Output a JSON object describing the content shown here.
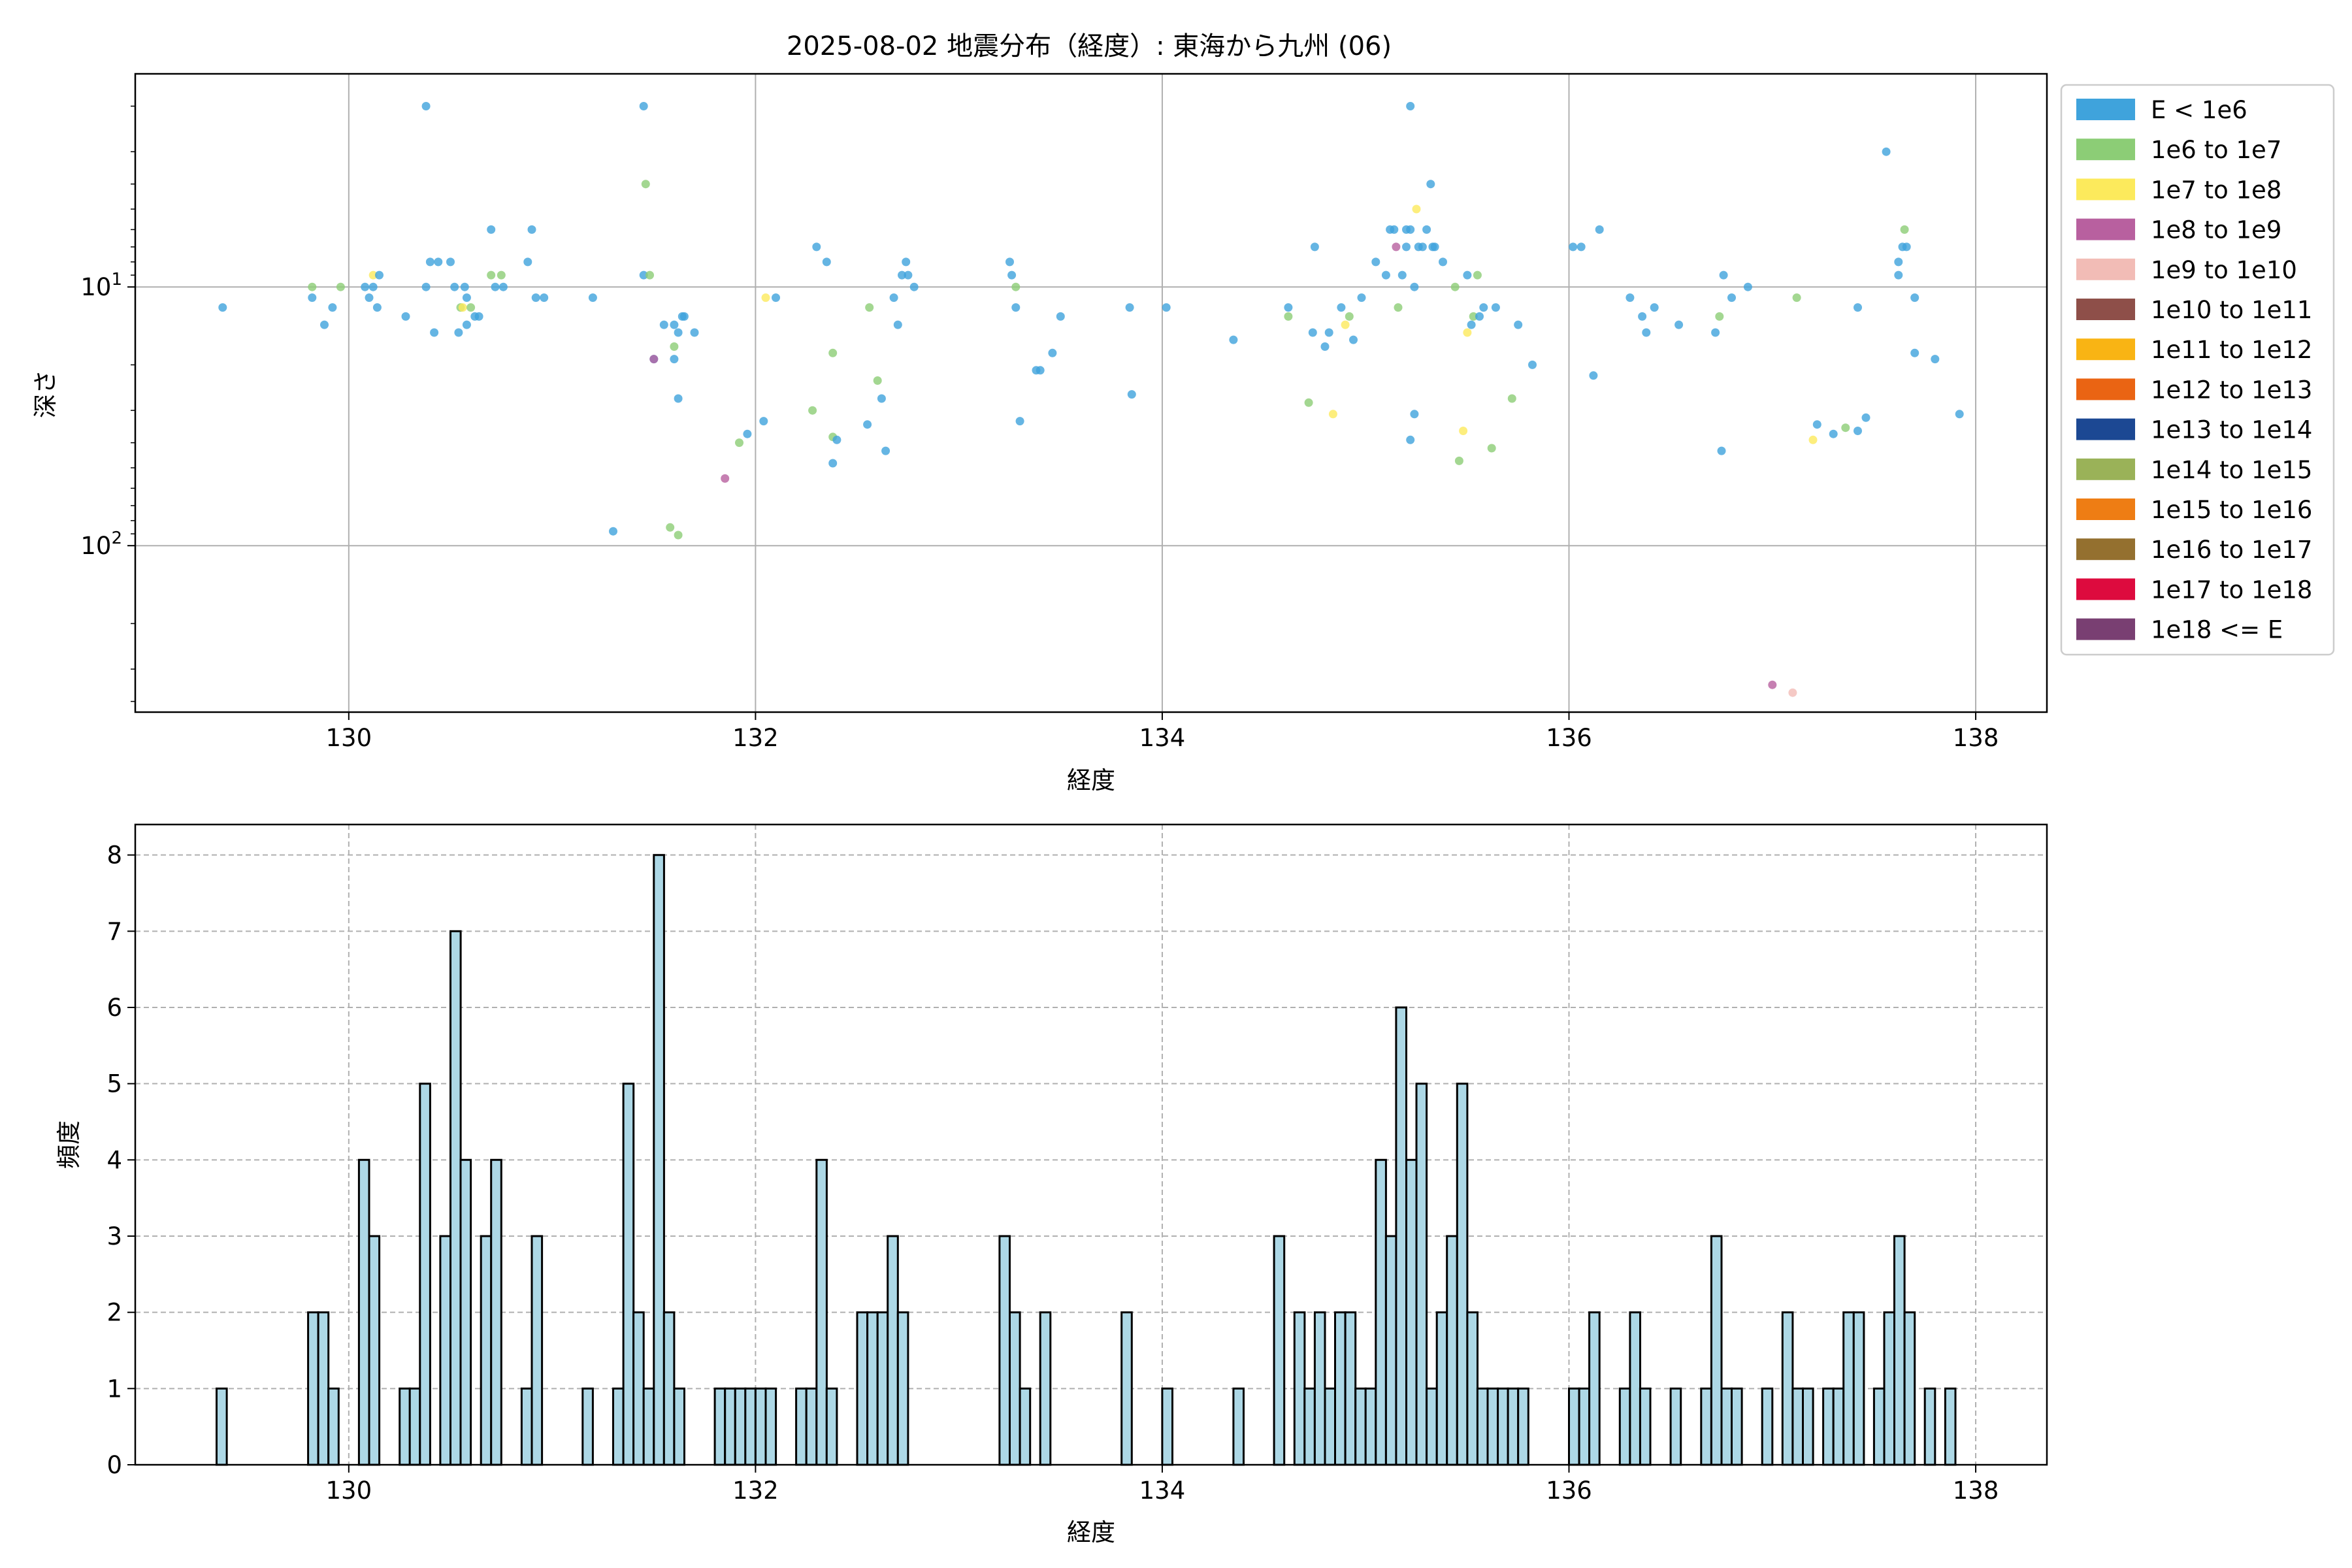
{
  "title": "2025-08-02 地震分布（経度）: 東海から九州 (06)",
  "chart_data": [
    {
      "type": "scatter",
      "xlabel": "経度",
      "ylabel": "深さ",
      "xlim": [
        128.95,
        138.35
      ],
      "ylim": [
        440,
        1.5
      ],
      "yscale": "log",
      "y_inverted": true,
      "xticks": [
        130,
        132,
        134,
        136,
        138
      ],
      "xtick_labels": [
        "130",
        "132",
        "134",
        "136",
        "138"
      ],
      "yticks": [
        10,
        100
      ],
      "ytick_labels": [
        "10¹",
        "10²"
      ],
      "grid": true,
      "legend_position": "outside-right",
      "legend": [
        {
          "label": "E < 1e6",
          "color": "#3fa3dc"
        },
        {
          "label": "1e6 to 1e7",
          "color": "#8ccd76"
        },
        {
          "label": "1e7 to 1e8",
          "color": "#fcea5c"
        },
        {
          "label": "1e8 to 1e9",
          "color": "#b8609f"
        },
        {
          "label": "1e9 to 1e10",
          "color": "#f2bcb6"
        },
        {
          "label": "1e10 to 1e11",
          "color": "#8e4f49"
        },
        {
          "label": "1e11 to 1e12",
          "color": "#f9b414"
        },
        {
          "label": "1e12 to 1e13",
          "color": "#ea6413"
        },
        {
          "label": "1e13 to 1e14",
          "color": "#1c4893"
        },
        {
          "label": "1e14 to 1e15",
          "color": "#9ab258"
        },
        {
          "label": "1e15 to 1e16",
          "color": "#ee7d14"
        },
        {
          "label": "1e16 to 1e17",
          "color": "#94702f"
        },
        {
          "label": "1e17 to 1e18",
          "color": "#dd0b3e"
        },
        {
          "label": "1e18 <= E",
          "color": "#793f72"
        }
      ],
      "points": [
        {
          "x": 129.38,
          "y": 12,
          "c": 0
        },
        {
          "x": 129.82,
          "y": 11,
          "c": 0
        },
        {
          "x": 129.82,
          "y": 10,
          "c": 1
        },
        {
          "x": 129.88,
          "y": 14,
          "c": 0
        },
        {
          "x": 129.92,
          "y": 12,
          "c": 0
        },
        {
          "x": 129.96,
          "y": 10,
          "c": 1
        },
        {
          "x": 130.08,
          "y": 10,
          "c": 0
        },
        {
          "x": 130.1,
          "y": 11,
          "c": 0
        },
        {
          "x": 130.12,
          "y": 9,
          "c": 2
        },
        {
          "x": 130.14,
          "y": 12,
          "c": 0
        },
        {
          "x": 130.15,
          "y": 9,
          "c": 0
        },
        {
          "x": 130.12,
          "y": 10,
          "c": 0
        },
        {
          "x": 130.28,
          "y": 13,
          "c": 0
        },
        {
          "x": 130.38,
          "y": 2,
          "c": 0
        },
        {
          "x": 130.38,
          "y": 10,
          "c": 0
        },
        {
          "x": 130.4,
          "y": 8,
          "c": 0
        },
        {
          "x": 130.42,
          "y": 15,
          "c": 0
        },
        {
          "x": 130.44,
          "y": 8,
          "c": 0
        },
        {
          "x": 130.5,
          "y": 8,
          "c": 0
        },
        {
          "x": 130.52,
          "y": 10,
          "c": 0
        },
        {
          "x": 130.54,
          "y": 15,
          "c": 0
        },
        {
          "x": 130.55,
          "y": 12,
          "c": 1
        },
        {
          "x": 130.56,
          "y": 12,
          "c": 2
        },
        {
          "x": 130.57,
          "y": 10,
          "c": 0
        },
        {
          "x": 130.58,
          "y": 11,
          "c": 0
        },
        {
          "x": 130.58,
          "y": 14,
          "c": 0
        },
        {
          "x": 130.6,
          "y": 12,
          "c": 1
        },
        {
          "x": 130.62,
          "y": 13,
          "c": 0
        },
        {
          "x": 130.64,
          "y": 13,
          "c": 0
        },
        {
          "x": 130.7,
          "y": 6,
          "c": 0
        },
        {
          "x": 130.7,
          "y": 9,
          "c": 1
        },
        {
          "x": 130.72,
          "y": 10,
          "c": 0
        },
        {
          "x": 130.75,
          "y": 9,
          "c": 1
        },
        {
          "x": 130.76,
          "y": 10,
          "c": 0
        },
        {
          "x": 130.88,
          "y": 8,
          "c": 0
        },
        {
          "x": 130.9,
          "y": 6,
          "c": 0
        },
        {
          "x": 130.92,
          "y": 11,
          "c": 0
        },
        {
          "x": 130.96,
          "y": 11,
          "c": 0
        },
        {
          "x": 131.2,
          "y": 11,
          "c": 0
        },
        {
          "x": 131.3,
          "y": 88,
          "c": 0
        },
        {
          "x": 131.45,
          "y": 2,
          "c": 0
        },
        {
          "x": 131.45,
          "y": 9,
          "c": 0
        },
        {
          "x": 131.46,
          "y": 4,
          "c": 1
        },
        {
          "x": 131.48,
          "y": 9,
          "c": 1
        },
        {
          "x": 131.5,
          "y": 19,
          "c": 0
        },
        {
          "x": 131.5,
          "y": 19,
          "c": 3
        },
        {
          "x": 131.55,
          "y": 14,
          "c": 0
        },
        {
          "x": 131.58,
          "y": 85,
          "c": 1
        },
        {
          "x": 131.6,
          "y": 17,
          "c": 1
        },
        {
          "x": 131.6,
          "y": 14,
          "c": 0
        },
        {
          "x": 131.62,
          "y": 91,
          "c": 1
        },
        {
          "x": 131.62,
          "y": 15,
          "c": 0
        },
        {
          "x": 131.64,
          "y": 13,
          "c": 0
        },
        {
          "x": 131.65,
          "y": 13,
          "c": 0
        },
        {
          "x": 131.62,
          "y": 27,
          "c": 0
        },
        {
          "x": 131.6,
          "y": 19,
          "c": 0
        },
        {
          "x": 131.7,
          "y": 15,
          "c": 0
        },
        {
          "x": 131.85,
          "y": 55,
          "c": 3
        },
        {
          "x": 131.92,
          "y": 40,
          "c": 1
        },
        {
          "x": 131.96,
          "y": 37,
          "c": 0
        },
        {
          "x": 132.04,
          "y": 33,
          "c": 0
        },
        {
          "x": 132.05,
          "y": 11,
          "c": 2
        },
        {
          "x": 132.1,
          "y": 11,
          "c": 0
        },
        {
          "x": 132.28,
          "y": 30,
          "c": 1
        },
        {
          "x": 132.3,
          "y": 7,
          "c": 0
        },
        {
          "x": 132.35,
          "y": 8,
          "c": 0
        },
        {
          "x": 132.38,
          "y": 18,
          "c": 1
        },
        {
          "x": 132.38,
          "y": 38,
          "c": 1
        },
        {
          "x": 132.4,
          "y": 39,
          "c": 0
        },
        {
          "x": 132.38,
          "y": 48,
          "c": 0
        },
        {
          "x": 132.55,
          "y": 34,
          "c": 0
        },
        {
          "x": 132.56,
          "y": 12,
          "c": 1
        },
        {
          "x": 132.6,
          "y": 23,
          "c": 1
        },
        {
          "x": 132.62,
          "y": 27,
          "c": 0
        },
        {
          "x": 132.64,
          "y": 43,
          "c": 0
        },
        {
          "x": 132.68,
          "y": 11,
          "c": 0
        },
        {
          "x": 132.7,
          "y": 14,
          "c": 0
        },
        {
          "x": 132.72,
          "y": 9,
          "c": 0
        },
        {
          "x": 132.74,
          "y": 8,
          "c": 0
        },
        {
          "x": 132.75,
          "y": 9,
          "c": 0
        },
        {
          "x": 132.78,
          "y": 10,
          "c": 0
        },
        {
          "x": 133.25,
          "y": 8,
          "c": 0
        },
        {
          "x": 133.26,
          "y": 9,
          "c": 0
        },
        {
          "x": 133.28,
          "y": 12,
          "c": 0
        },
        {
          "x": 133.28,
          "y": 10,
          "c": 1
        },
        {
          "x": 133.3,
          "y": 33,
          "c": 0
        },
        {
          "x": 133.38,
          "y": 21,
          "c": 0
        },
        {
          "x": 133.4,
          "y": 21,
          "c": 0
        },
        {
          "x": 133.46,
          "y": 18,
          "c": 0
        },
        {
          "x": 133.5,
          "y": 13,
          "c": 0
        },
        {
          "x": 133.84,
          "y": 12,
          "c": 0
        },
        {
          "x": 133.85,
          "y": 26,
          "c": 0
        },
        {
          "x": 134.02,
          "y": 12,
          "c": 0
        },
        {
          "x": 134.35,
          "y": 16,
          "c": 0
        },
        {
          "x": 134.62,
          "y": 12,
          "c": 0
        },
        {
          "x": 134.62,
          "y": 13,
          "c": 1
        },
        {
          "x": 134.72,
          "y": 28,
          "c": 1
        },
        {
          "x": 134.74,
          "y": 15,
          "c": 0
        },
        {
          "x": 134.75,
          "y": 7,
          "c": 0
        },
        {
          "x": 134.8,
          "y": 17,
          "c": 0
        },
        {
          "x": 134.82,
          "y": 15,
          "c": 0
        },
        {
          "x": 134.84,
          "y": 31,
          "c": 2
        },
        {
          "x": 134.88,
          "y": 12,
          "c": 0
        },
        {
          "x": 134.9,
          "y": 14,
          "c": 2
        },
        {
          "x": 134.92,
          "y": 13,
          "c": 1
        },
        {
          "x": 134.94,
          "y": 16,
          "c": 0
        },
        {
          "x": 134.98,
          "y": 11,
          "c": 0
        },
        {
          "x": 135.05,
          "y": 8,
          "c": 0
        },
        {
          "x": 135.1,
          "y": 9,
          "c": 0
        },
        {
          "x": 135.12,
          "y": 6,
          "c": 0
        },
        {
          "x": 135.14,
          "y": 6,
          "c": 0
        },
        {
          "x": 135.15,
          "y": 7,
          "c": 3
        },
        {
          "x": 135.16,
          "y": 12,
          "c": 1
        },
        {
          "x": 135.18,
          "y": 9,
          "c": 0
        },
        {
          "x": 135.2,
          "y": 6,
          "c": 0
        },
        {
          "x": 135.2,
          "y": 7,
          "c": 0
        },
        {
          "x": 135.22,
          "y": 2,
          "c": 0
        },
        {
          "x": 135.22,
          "y": 6,
          "c": 0
        },
        {
          "x": 135.22,
          "y": 39,
          "c": 0
        },
        {
          "x": 135.24,
          "y": 31,
          "c": 0
        },
        {
          "x": 135.24,
          "y": 10,
          "c": 0
        },
        {
          "x": 135.25,
          "y": 5,
          "c": 2
        },
        {
          "x": 135.26,
          "y": 7,
          "c": 0
        },
        {
          "x": 135.28,
          "y": 7,
          "c": 0
        },
        {
          "x": 135.3,
          "y": 6,
          "c": 0
        },
        {
          "x": 135.32,
          "y": 4,
          "c": 0
        },
        {
          "x": 135.33,
          "y": 7,
          "c": 0
        },
        {
          "x": 135.34,
          "y": 7,
          "c": 0
        },
        {
          "x": 135.38,
          "y": 8,
          "c": 0
        },
        {
          "x": 135.44,
          "y": 10,
          "c": 1
        },
        {
          "x": 135.46,
          "y": 47,
          "c": 1
        },
        {
          "x": 135.48,
          "y": 36,
          "c": 2
        },
        {
          "x": 135.5,
          "y": 15,
          "c": 2
        },
        {
          "x": 135.5,
          "y": 9,
          "c": 0
        },
        {
          "x": 135.52,
          "y": 14,
          "c": 0
        },
        {
          "x": 135.53,
          "y": 13,
          "c": 1
        },
        {
          "x": 135.55,
          "y": 9,
          "c": 1
        },
        {
          "x": 135.56,
          "y": 13,
          "c": 0
        },
        {
          "x": 135.58,
          "y": 12,
          "c": 0
        },
        {
          "x": 135.62,
          "y": 42,
          "c": 1
        },
        {
          "x": 135.64,
          "y": 12,
          "c": 0
        },
        {
          "x": 135.72,
          "y": 27,
          "c": 1
        },
        {
          "x": 135.75,
          "y": 14,
          "c": 0
        },
        {
          "x": 135.82,
          "y": 20,
          "c": 0
        },
        {
          "x": 136.02,
          "y": 7,
          "c": 0
        },
        {
          "x": 136.06,
          "y": 7,
          "c": 0
        },
        {
          "x": 136.12,
          "y": 22,
          "c": 0
        },
        {
          "x": 136.15,
          "y": 6,
          "c": 0
        },
        {
          "x": 136.3,
          "y": 11,
          "c": 0
        },
        {
          "x": 136.36,
          "y": 13,
          "c": 0
        },
        {
          "x": 136.38,
          "y": 15,
          "c": 0
        },
        {
          "x": 136.42,
          "y": 12,
          "c": 0
        },
        {
          "x": 136.54,
          "y": 14,
          "c": 0
        },
        {
          "x": 136.72,
          "y": 15,
          "c": 0
        },
        {
          "x": 136.74,
          "y": 13,
          "c": 1
        },
        {
          "x": 136.75,
          "y": 43,
          "c": 0
        },
        {
          "x": 136.76,
          "y": 9,
          "c": 0
        },
        {
          "x": 136.8,
          "y": 11,
          "c": 0
        },
        {
          "x": 136.88,
          "y": 10,
          "c": 0
        },
        {
          "x": 137.0,
          "y": 345,
          "c": 3
        },
        {
          "x": 137.1,
          "y": 370,
          "c": 4
        },
        {
          "x": 137.12,
          "y": 11,
          "c": 1
        },
        {
          "x": 137.2,
          "y": 39,
          "c": 2
        },
        {
          "x": 137.22,
          "y": 34,
          "c": 0
        },
        {
          "x": 137.3,
          "y": 37,
          "c": 0
        },
        {
          "x": 137.36,
          "y": 35,
          "c": 1
        },
        {
          "x": 137.42,
          "y": 36,
          "c": 0
        },
        {
          "x": 137.42,
          "y": 12,
          "c": 0
        },
        {
          "x": 137.46,
          "y": 32,
          "c": 0
        },
        {
          "x": 137.56,
          "y": 3,
          "c": 0
        },
        {
          "x": 137.62,
          "y": 8,
          "c": 0
        },
        {
          "x": 137.62,
          "y": 9,
          "c": 0
        },
        {
          "x": 137.64,
          "y": 7,
          "c": 0
        },
        {
          "x": 137.65,
          "y": 6,
          "c": 1
        },
        {
          "x": 137.66,
          "y": 7,
          "c": 0
        },
        {
          "x": 137.7,
          "y": 11,
          "c": 0
        },
        {
          "x": 137.7,
          "y": 18,
          "c": 0
        },
        {
          "x": 137.8,
          "y": 19,
          "c": 0
        },
        {
          "x": 137.92,
          "y": 31,
          "c": 0
        }
      ]
    },
    {
      "type": "bar",
      "xlabel": "経度",
      "ylabel": "頻度",
      "xlim": [
        128.95,
        138.35
      ],
      "ylim": [
        0,
        8.4
      ],
      "xticks": [
        130,
        132,
        134,
        136,
        138
      ],
      "xtick_labels": [
        "130",
        "132",
        "134",
        "136",
        "138"
      ],
      "yticks": [
        0,
        1,
        2,
        3,
        4,
        5,
        6,
        7,
        8
      ],
      "ytick_labels": [
        "0",
        "1",
        "2",
        "3",
        "4",
        "5",
        "6",
        "7",
        "8"
      ],
      "grid": true,
      "bar_color": "#add8e6",
      "bin_width": 0.05,
      "x": [
        129.375,
        129.825,
        129.875,
        129.925,
        130.075,
        130.125,
        130.275,
        130.325,
        130.375,
        130.475,
        130.525,
        130.575,
        130.675,
        130.725,
        130.875,
        130.925,
        131.175,
        131.325,
        131.375,
        131.425,
        131.475,
        131.525,
        131.575,
        131.625,
        131.825,
        131.875,
        131.925,
        131.975,
        132.025,
        132.075,
        132.225,
        132.275,
        132.325,
        132.375,
        132.525,
        132.575,
        132.625,
        132.675,
        132.725,
        133.225,
        133.275,
        133.325,
        133.425,
        133.825,
        134.025,
        134.375,
        134.575,
        134.675,
        134.725,
        134.775,
        134.825,
        134.875,
        134.925,
        134.975,
        135.025,
        135.075,
        135.125,
        135.175,
        135.225,
        135.275,
        135.325,
        135.375,
        135.425,
        135.475,
        135.525,
        135.575,
        135.625,
        135.675,
        135.725,
        135.775,
        136.025,
        136.075,
        136.125,
        136.275,
        136.325,
        136.375,
        136.525,
        136.675,
        136.725,
        136.775,
        136.825,
        136.975,
        137.075,
        137.125,
        137.175,
        137.275,
        137.325,
        137.375,
        137.425,
        137.525,
        137.575,
        137.625,
        137.675,
        137.775,
        137.875
      ],
      "values": [
        1,
        2,
        2,
        1,
        4,
        3,
        1,
        1,
        5,
        3,
        7,
        4,
        3,
        4,
        1,
        3,
        1,
        1,
        5,
        2,
        1,
        8,
        2,
        1,
        1,
        1,
        1,
        1,
        1,
        1,
        1,
        1,
        4,
        1,
        2,
        2,
        2,
        3,
        2,
        3,
        2,
        1,
        2,
        2,
        1,
        1,
        3,
        2,
        1,
        2,
        1,
        2,
        2,
        1,
        1,
        4,
        3,
        6,
        4,
        5,
        1,
        2,
        3,
        5,
        2,
        1,
        1,
        1,
        1,
        1,
        1,
        1,
        2,
        1,
        2,
        1,
        1,
        1,
        3,
        1,
        1,
        1,
        2,
        1,
        1,
        1,
        1,
        2,
        2,
        1,
        2,
        3,
        2,
        1,
        1
      ]
    }
  ]
}
